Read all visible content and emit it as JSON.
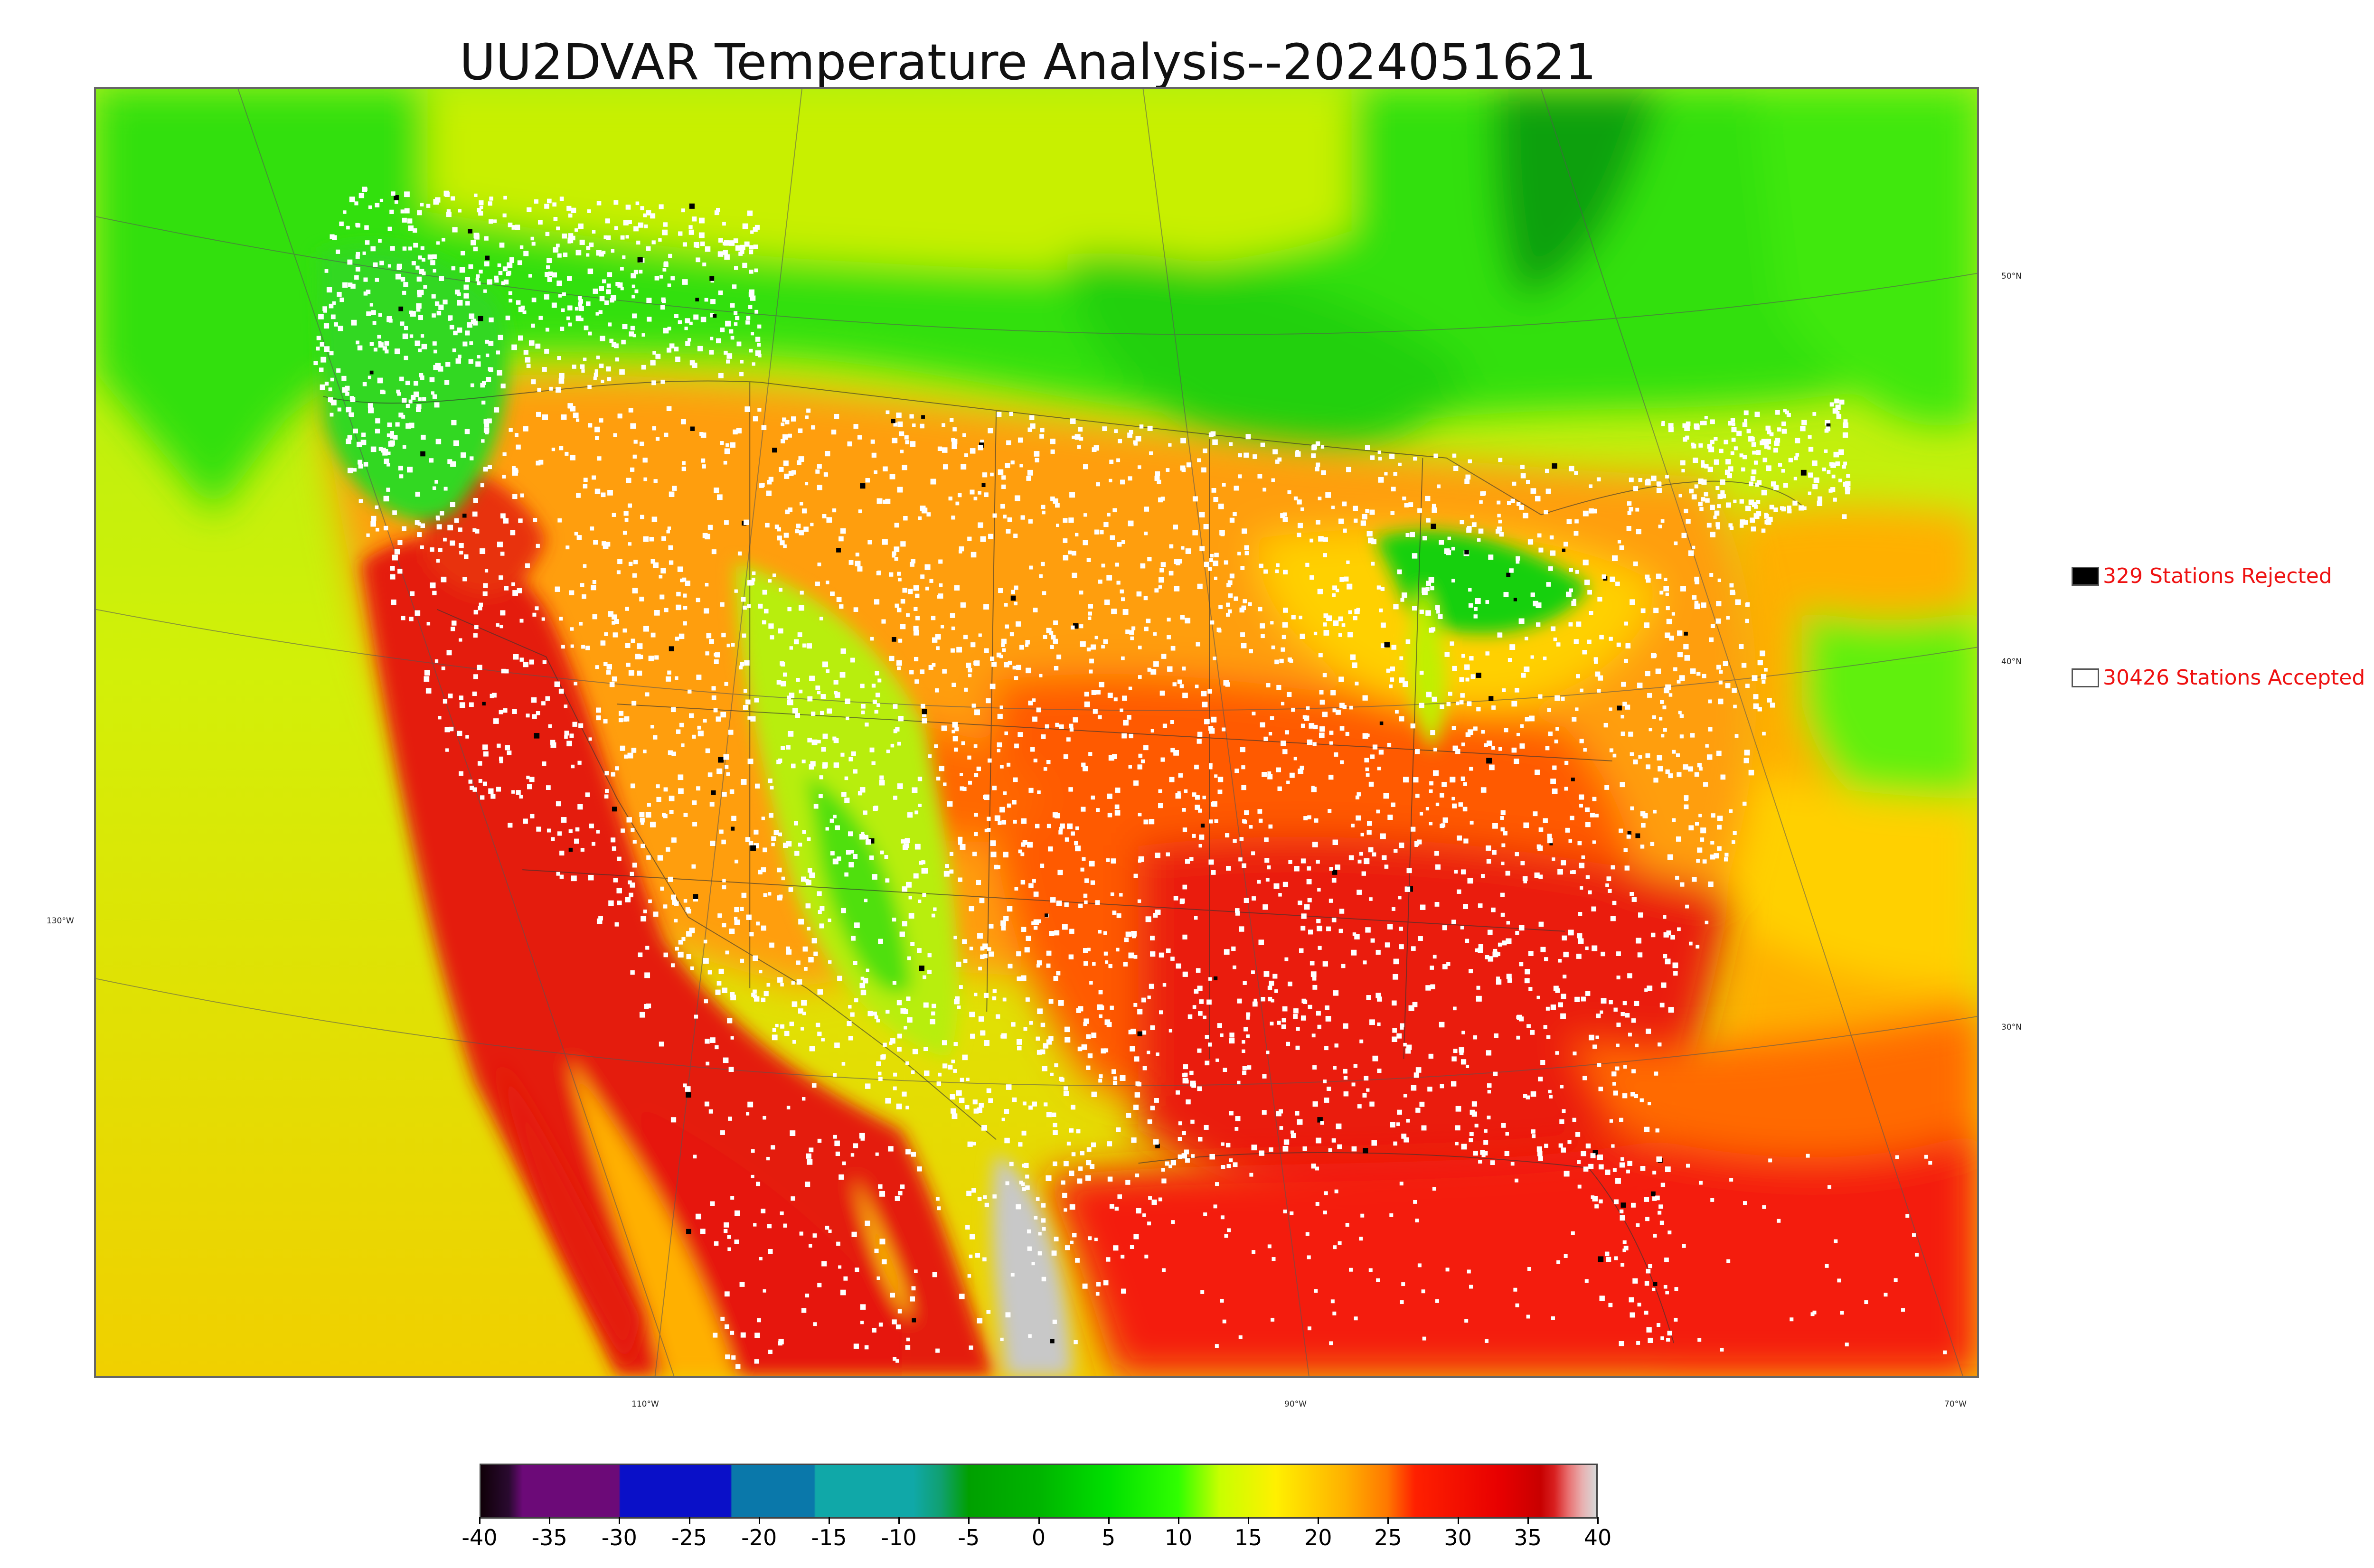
{
  "title": "UU2DVAR Temperature Analysis--2024051621",
  "map": {
    "description_colors": {
      "sea_north": "#2ad61a",
      "cold_land": "#19e01a",
      "hudson": "#14a814",
      "warm_orange": "#ffa80a",
      "hot_red": "#e81b0c",
      "gulf": "#f21e08",
      "pacific": "#d6f00a",
      "snow": "#ffffff"
    },
    "lat_labels": [
      "50°N",
      "40°N",
      "30°N"
    ],
    "lon_labels": [
      "130°W",
      "110°W",
      "90°W",
      "70°W"
    ]
  },
  "legend": {
    "rejected_text": "329 Stations Rejected",
    "accepted_text": "30426 Stations Accepted",
    "rejected_color": "#000000",
    "accepted_color": "#ffffff",
    "text_color": "#ee1111"
  },
  "colorbar": {
    "min": -40,
    "max": 40,
    "tick_labels": [
      "-40",
      "-35",
      "-30",
      "-25",
      "-20",
      "-15",
      "-10",
      "-5",
      "0",
      "5",
      "10",
      "15",
      "20",
      "25",
      "30",
      "35",
      "40"
    ],
    "stops": [
      {
        "v": -40,
        "c": "#100008"
      },
      {
        "v": -38,
        "c": "#2a0a30"
      },
      {
        "v": -37,
        "c": "#6c0a78"
      },
      {
        "v": -30.1,
        "c": "#6c0a78"
      },
      {
        "v": -30,
        "c": "#0a10c8"
      },
      {
        "v": -22.1,
        "c": "#0a10c8"
      },
      {
        "v": -22,
        "c": "#0a78aa"
      },
      {
        "v": -16.1,
        "c": "#0a78aa"
      },
      {
        "v": -16,
        "c": "#10a8a8"
      },
      {
        "v": -9,
        "c": "#10a8a8"
      },
      {
        "v": -7,
        "c": "#10a070"
      },
      {
        "v": -5,
        "c": "#00a000"
      },
      {
        "v": 0,
        "c": "#00b400"
      },
      {
        "v": 5,
        "c": "#00e000"
      },
      {
        "v": 10,
        "c": "#30ff00"
      },
      {
        "v": 13,
        "c": "#c8ff00"
      },
      {
        "v": 17,
        "c": "#fff000"
      },
      {
        "v": 22,
        "c": "#ffb000"
      },
      {
        "v": 25,
        "c": "#ff7800"
      },
      {
        "v": 27,
        "c": "#ff2000"
      },
      {
        "v": 33,
        "c": "#e80000"
      },
      {
        "v": 36,
        "c": "#c80000"
      },
      {
        "v": 37,
        "c": "#d82020"
      },
      {
        "v": 38,
        "c": "#e87070"
      },
      {
        "v": 39,
        "c": "#e8b0b0"
      },
      {
        "v": 40,
        "c": "#d8d8d8"
      }
    ]
  }
}
